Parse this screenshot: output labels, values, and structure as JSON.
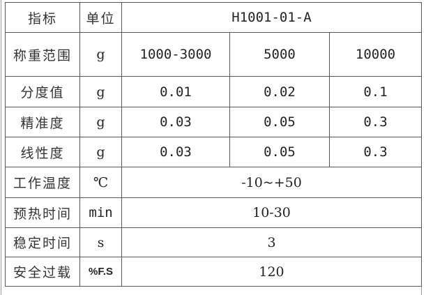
{
  "table": {
    "header": {
      "indicator": "指标",
      "unit": "单位",
      "model": "H1001-01-A"
    },
    "rows": [
      {
        "label": "称重范围",
        "unit": "g",
        "values": [
          "1000-3000",
          "5000",
          "10000"
        ]
      },
      {
        "label": "分度值",
        "unit": "g",
        "values": [
          "0.01",
          "0.02",
          "0.1"
        ]
      },
      {
        "label": "精准度",
        "unit": "g",
        "values": [
          "0.03",
          "0.05",
          "0.3"
        ]
      },
      {
        "label": "线性度",
        "unit": "g",
        "values": [
          "0.03",
          "0.05",
          "0.3"
        ]
      },
      {
        "label": "工作温度",
        "unit": "℃",
        "value": "-10~+50"
      },
      {
        "label": "预热时间",
        "unit": "min",
        "value": "10-30"
      },
      {
        "label": "稳定时间",
        "unit": "s",
        "value": "3"
      },
      {
        "label": "安全过载",
        "unit": "%F.S",
        "value": "120"
      }
    ]
  }
}
